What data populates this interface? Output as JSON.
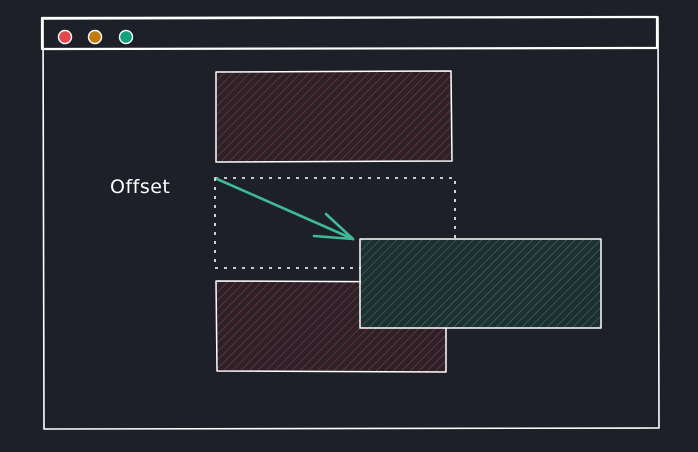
{
  "diagram": {
    "offset_label": "Offset"
  },
  "window": {
    "traffic_lights": [
      {
        "name": "close-button",
        "color": "#e5484d"
      },
      {
        "name": "minimize-button",
        "color": "#c27c0e"
      },
      {
        "name": "maximize-button",
        "color": "#12a17a"
      }
    ]
  },
  "colors": {
    "background": "#1e2029",
    "stroke": "#ffffff",
    "hatch_red": "#8a3a42",
    "hatch_red_fill": "#2c2128",
    "hatch_teal": "#2c7a6c",
    "hatch_teal_fill": "#1f2e30",
    "arrow": "#3fb996"
  }
}
